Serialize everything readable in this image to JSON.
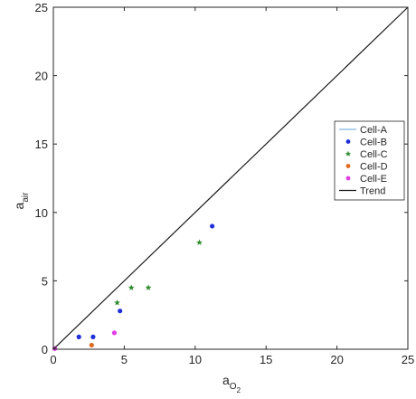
{
  "chart_data": {
    "type": "scatter",
    "title": "",
    "xlabel": {
      "main": "a",
      "sub": "O",
      "subsub": "2"
    },
    "ylabel": {
      "main": "a",
      "sub": "air"
    },
    "xlim": [
      0,
      25
    ],
    "ylim": [
      0,
      25
    ],
    "xticks": [
      "0",
      "5",
      "10",
      "15",
      "20",
      "25"
    ],
    "yticks": [
      "0",
      "5",
      "10",
      "15",
      "20",
      "25"
    ],
    "grid": false,
    "legend_position": "right",
    "series": [
      {
        "name": "Cell-A",
        "style": "line",
        "color": "#7EB6E4",
        "points": [
          [
            0,
            0
          ]
        ]
      },
      {
        "name": "Cell-B",
        "style": "dot",
        "color": "#1F2FD8",
        "points": [
          [
            1.8,
            0.9
          ],
          [
            2.8,
            0.9
          ],
          [
            4.7,
            2.8
          ],
          [
            11.2,
            9.0
          ]
        ]
      },
      {
        "name": "Cell-C",
        "style": "star",
        "color": "#2A8A2A",
        "points": [
          [
            4.5,
            3.4
          ],
          [
            5.5,
            4.5
          ],
          [
            6.7,
            4.5
          ],
          [
            10.3,
            7.8
          ]
        ]
      },
      {
        "name": "Cell-D",
        "style": "dot",
        "color": "#E06A20",
        "points": [
          [
            2.7,
            0.3
          ]
        ]
      },
      {
        "name": "Cell-E",
        "style": "dot",
        "color": "#E23CE6",
        "points": [
          [
            4.3,
            1.2
          ],
          [
            0.1,
            0.05
          ]
        ]
      },
      {
        "name": "Trend",
        "style": "line",
        "color": "#1a1a1a",
        "points": [
          [
            0,
            0
          ],
          [
            25,
            25
          ]
        ]
      }
    ]
  }
}
